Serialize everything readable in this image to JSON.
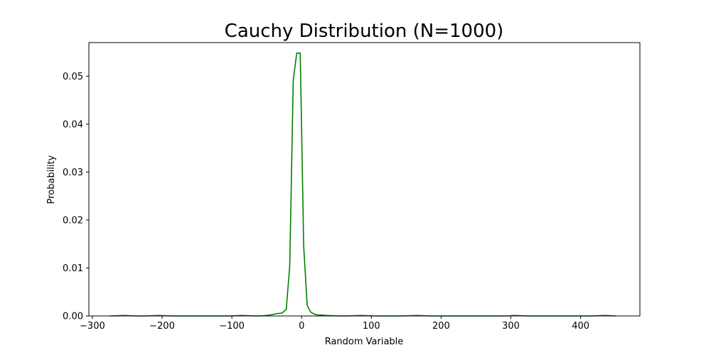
{
  "chart_data": {
    "type": "line",
    "title": "Cauchy Distribution (N=1000)",
    "xlabel": "Random Variable",
    "ylabel": "Probability",
    "xlim": [
      -305,
      485
    ],
    "ylim": [
      0,
      0.057
    ],
    "xticks": [
      -300,
      -200,
      -100,
      0,
      100,
      200,
      300,
      400
    ],
    "xtick_labels": [
      "−300",
      "−200",
      "−100",
      "0",
      "100",
      "200",
      "300",
      "400"
    ],
    "yticks": [
      0.0,
      0.01,
      0.02,
      0.03,
      0.04,
      0.05
    ],
    "ytick_labels": [
      "0.00",
      "0.01",
      "0.02",
      "0.03",
      "0.04",
      "0.05"
    ],
    "grid": false,
    "series": [
      {
        "color": "#008000",
        "x": [
          -275,
          -265,
          -255,
          -245,
          -235,
          -225,
          -215,
          -205,
          -195,
          -185,
          -175,
          -165,
          -155,
          -145,
          -135,
          -125,
          -115,
          -105,
          -95,
          -85,
          -75,
          -65,
          -55,
          -45,
          -35,
          -28,
          -22,
          -17,
          -12,
          -7,
          -2,
          3,
          8,
          13,
          18,
          23,
          28,
          35,
          45,
          55,
          65,
          75,
          85,
          95,
          105,
          115,
          125,
          135,
          145,
          155,
          165,
          175,
          185,
          195,
          205,
          215,
          225,
          235,
          245,
          255,
          265,
          275,
          285,
          295,
          305,
          315,
          325,
          335,
          345,
          355,
          365,
          375,
          385,
          395,
          405,
          415,
          425,
          435,
          445,
          450
        ],
        "y": [
          0.0,
          5e-05,
          0.0001,
          5e-05,
          0.0,
          0.0,
          5e-05,
          0.0001,
          5e-05,
          0.0,
          0.0,
          0.0,
          0.0,
          0.0,
          0.0,
          0.0,
          0.0,
          0.0,
          5e-05,
          0.0001,
          5e-05,
          0.0,
          5e-05,
          0.0002,
          0.0005,
          0.0006,
          0.0014,
          0.0105,
          0.0492,
          0.0548,
          0.0548,
          0.0145,
          0.0022,
          0.0008,
          0.0004,
          0.0002,
          0.0002,
          0.0001,
          5e-05,
          0.0,
          0.0,
          5e-05,
          0.0001,
          5e-05,
          0.0,
          0.0,
          0.0,
          0.0,
          0.0,
          5e-05,
          0.0001,
          5e-05,
          0.0,
          0.0,
          0.0,
          0.0,
          0.0,
          0.0,
          0.0,
          0.0,
          0.0,
          0.0,
          0.0,
          0.0,
          0.0001,
          5e-05,
          0.0,
          0.0,
          0.0,
          0.0,
          0.0,
          0.0,
          0.0,
          0.0,
          0.0,
          0.0,
          5e-05,
          0.0001,
          5e-05,
          0.0
        ]
      }
    ]
  }
}
